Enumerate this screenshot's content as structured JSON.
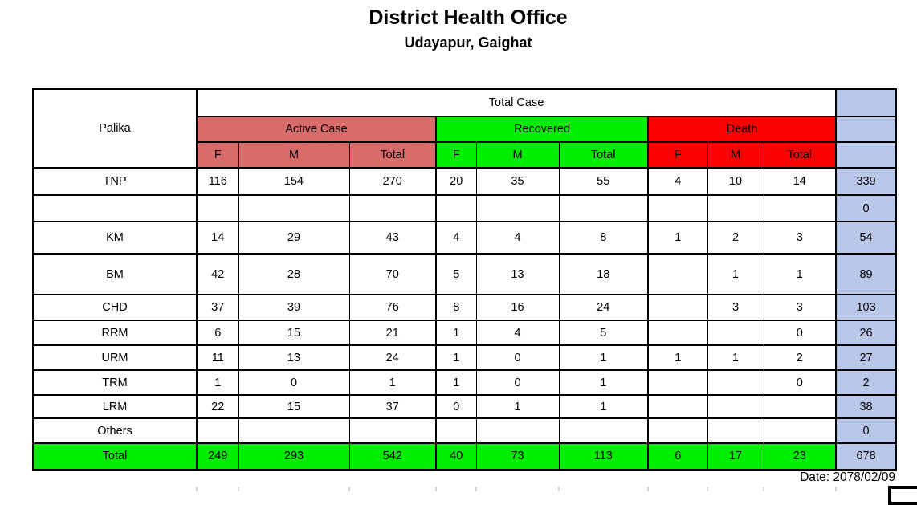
{
  "title": "District Health Office",
  "subtitle": "Udayapur, Gaighat",
  "date_label": "Date: 2078/02/09",
  "colors": {
    "active_case": "#d96b6b",
    "recovered": "#00ed00",
    "death": "#fa0000",
    "grand_total_column": "#b9c7e8"
  },
  "table": {
    "corner_header": "Palika",
    "top_header": "Total Case",
    "groups": [
      {
        "label": "Active Case"
      },
      {
        "label": "Recovered"
      },
      {
        "label": "Death"
      }
    ],
    "sub_headers": [
      "F",
      "M",
      "Total"
    ],
    "rows": [
      {
        "palika": "TNP",
        "cells": [
          "116",
          "154",
          "270",
          "20",
          "35",
          "55",
          "4",
          "10",
          "14"
        ],
        "total": "339",
        "is_total": false
      },
      {
        "palika": "",
        "cells": [
          "",
          "",
          "",
          "",
          "",
          "",
          "",
          "",
          ""
        ],
        "total": "0",
        "is_total": false
      },
      {
        "palika": "KM",
        "cells": [
          "14",
          "29",
          "43",
          "4",
          "4",
          "8",
          "1",
          "2",
          "3"
        ],
        "total": "54",
        "is_total": false
      },
      {
        "palika": "BM",
        "cells": [
          "42",
          "28",
          "70",
          "5",
          "13",
          "18",
          "",
          "1",
          "1"
        ],
        "total": "89",
        "is_total": false
      },
      {
        "palika": "CHD",
        "cells": [
          "37",
          "39",
          "76",
          "8",
          "16",
          "24",
          "",
          "3",
          "3"
        ],
        "total": "103",
        "is_total": false
      },
      {
        "palika": "RRM",
        "cells": [
          "6",
          "15",
          "21",
          "1",
          "4",
          "5",
          "",
          "",
          "0"
        ],
        "total": "26",
        "is_total": false
      },
      {
        "palika": "URM",
        "cells": [
          "11",
          "13",
          "24",
          "1",
          "0",
          "1",
          "1",
          "1",
          "2"
        ],
        "total": "27",
        "is_total": false
      },
      {
        "palika": "TRM",
        "cells": [
          "1",
          "0",
          "1",
          "1",
          "0",
          "1",
          "",
          "",
          "0"
        ],
        "total": "2",
        "is_total": false
      },
      {
        "palika": "LRM",
        "cells": [
          "22",
          "15",
          "37",
          "0",
          "1",
          "1",
          "",
          "",
          ""
        ],
        "total": "38",
        "is_total": false
      },
      {
        "palika": "Others",
        "cells": [
          "",
          "",
          "",
          "",
          "",
          "",
          "",
          "",
          ""
        ],
        "total": "0",
        "is_total": false
      },
      {
        "palika": "Total",
        "cells": [
          "249",
          "293",
          "542",
          "40",
          "73",
          "113",
          "6",
          "17",
          "23"
        ],
        "total": "678",
        "is_total": true
      }
    ]
  }
}
